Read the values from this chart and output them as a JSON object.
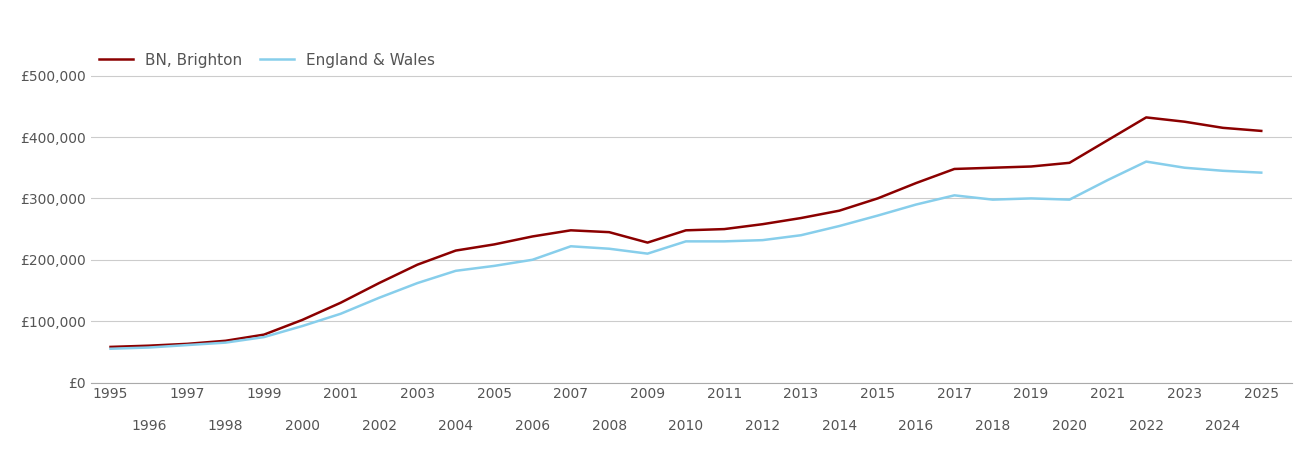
{
  "years": [
    1995,
    1996,
    1997,
    1998,
    1999,
    2000,
    2001,
    2002,
    2003,
    2004,
    2005,
    2006,
    2007,
    2008,
    2009,
    2010,
    2011,
    2012,
    2013,
    2014,
    2015,
    2016,
    2017,
    2018,
    2019,
    2020,
    2021,
    2022,
    2023,
    2024,
    2025
  ],
  "brighton": [
    58000,
    60000,
    63000,
    68000,
    78000,
    102000,
    130000,
    162000,
    192000,
    215000,
    225000,
    238000,
    248000,
    245000,
    228000,
    248000,
    250000,
    258000,
    268000,
    280000,
    300000,
    325000,
    348000,
    350000,
    352000,
    358000,
    395000,
    432000,
    425000,
    415000,
    410000
  ],
  "england_wales": [
    55000,
    57000,
    61000,
    65000,
    74000,
    92000,
    112000,
    138000,
    162000,
    182000,
    190000,
    200000,
    222000,
    218000,
    210000,
    230000,
    230000,
    232000,
    240000,
    255000,
    272000,
    290000,
    305000,
    298000,
    300000,
    298000,
    330000,
    360000,
    350000,
    345000,
    342000
  ],
  "brighton_color": "#8B0000",
  "england_wales_color": "#87CEEB",
  "brighton_label": "BN, Brighton",
  "england_wales_label": "England & Wales",
  "ylim": [
    0,
    550000
  ],
  "yticks": [
    0,
    100000,
    200000,
    300000,
    400000,
    500000
  ],
  "ytick_labels": [
    "£0",
    "£100,000",
    "£200,000",
    "£300,000",
    "£400,000",
    "£500,000"
  ],
  "xlim": [
    1994.5,
    2025.8
  ],
  "background_color": "#ffffff",
  "grid_color": "#cccccc",
  "line_width": 1.8,
  "legend_fontsize": 11,
  "tick_fontsize": 10,
  "tick_color": "#555555"
}
